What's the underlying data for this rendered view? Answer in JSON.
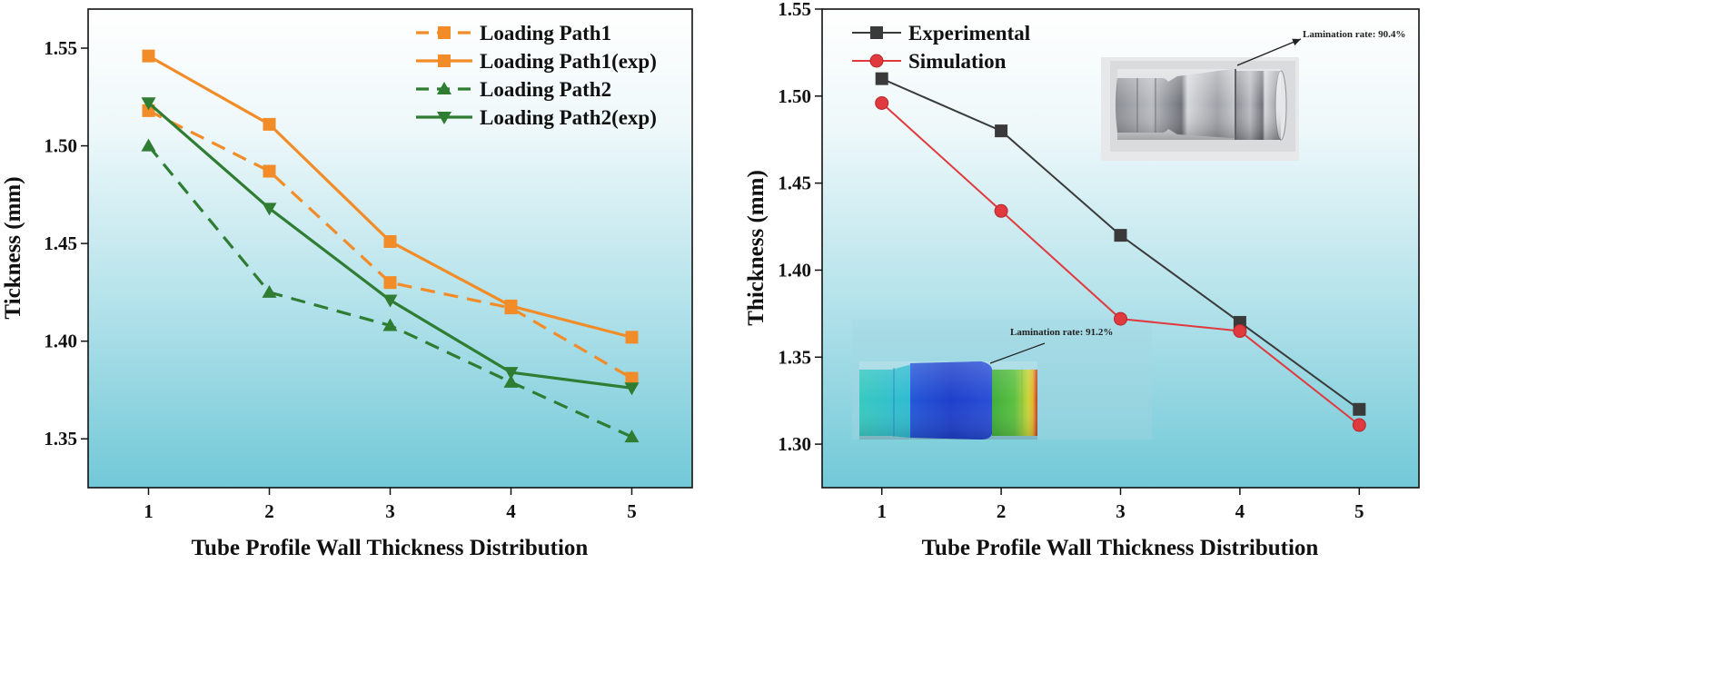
{
  "chart_data": [
    {
      "type": "line",
      "xlabel": "Tube Profile Wall Thickness Distribution",
      "ylabel": "Tickness (mm)",
      "x": [
        1,
        2,
        3,
        4,
        5
      ],
      "xticks": [
        "1",
        "2",
        "3",
        "4",
        "5"
      ],
      "xlim": [
        0.5,
        5.5
      ],
      "ylim": [
        1.325,
        1.57
      ],
      "yticks": [
        "1.35",
        "1.40",
        "1.45",
        "1.50",
        "1.55"
      ],
      "ytick_values": [
        1.35,
        1.4,
        1.45,
        1.5,
        1.55
      ],
      "legend_position": "top-right",
      "series": [
        {
          "name": "Loading Path1",
          "values": [
            1.518,
            1.487,
            1.43,
            1.417,
            1.381
          ],
          "color": "#F28C28",
          "dash": "dashed",
          "marker": "square"
        },
        {
          "name": "Loading Path1(exp)",
          "values": [
            1.546,
            1.511,
            1.451,
            1.418,
            1.402
          ],
          "color": "#F28C28",
          "dash": "solid",
          "marker": "square"
        },
        {
          "name": "Loading Path2",
          "values": [
            1.5,
            1.425,
            1.408,
            1.379,
            1.351
          ],
          "color": "#2E7D32",
          "dash": "dashed",
          "marker": "triangle-up"
        },
        {
          "name": "Loading Path2(exp)",
          "values": [
            1.522,
            1.468,
            1.421,
            1.384,
            1.376
          ],
          "color": "#2E7D32",
          "dash": "solid",
          "marker": "triangle-down"
        }
      ]
    },
    {
      "type": "line",
      "xlabel": "Tube Profile Wall Thickness Distribution",
      "ylabel": "Thickness (mm)",
      "x": [
        1,
        2,
        3,
        4,
        5
      ],
      "xticks": [
        "1",
        "2",
        "3",
        "4",
        "5"
      ],
      "xlim": [
        0.5,
        5.5
      ],
      "ylim": [
        1.275,
        1.55
      ],
      "yticks": [
        "1.30",
        "1.35",
        "1.40",
        "1.45",
        "1.50",
        "1.55"
      ],
      "ytick_values": [
        1.3,
        1.35,
        1.4,
        1.45,
        1.5,
        1.55
      ],
      "legend_position": "top-left",
      "series": [
        {
          "name": "Experimental",
          "values": [
            1.51,
            1.48,
            1.42,
            1.37,
            1.32
          ],
          "color": "#3a3a3a",
          "dash": "solid",
          "marker": "square"
        },
        {
          "name": "Simulation",
          "values": [
            1.496,
            1.434,
            1.372,
            1.365,
            1.311
          ],
          "color": "#E0393E",
          "dash": "solid",
          "marker": "circle"
        }
      ],
      "annotations": {
        "photo": "Lamination rate: 90.4%",
        "simulation": "Lamination rate:  91.2%"
      }
    }
  ]
}
